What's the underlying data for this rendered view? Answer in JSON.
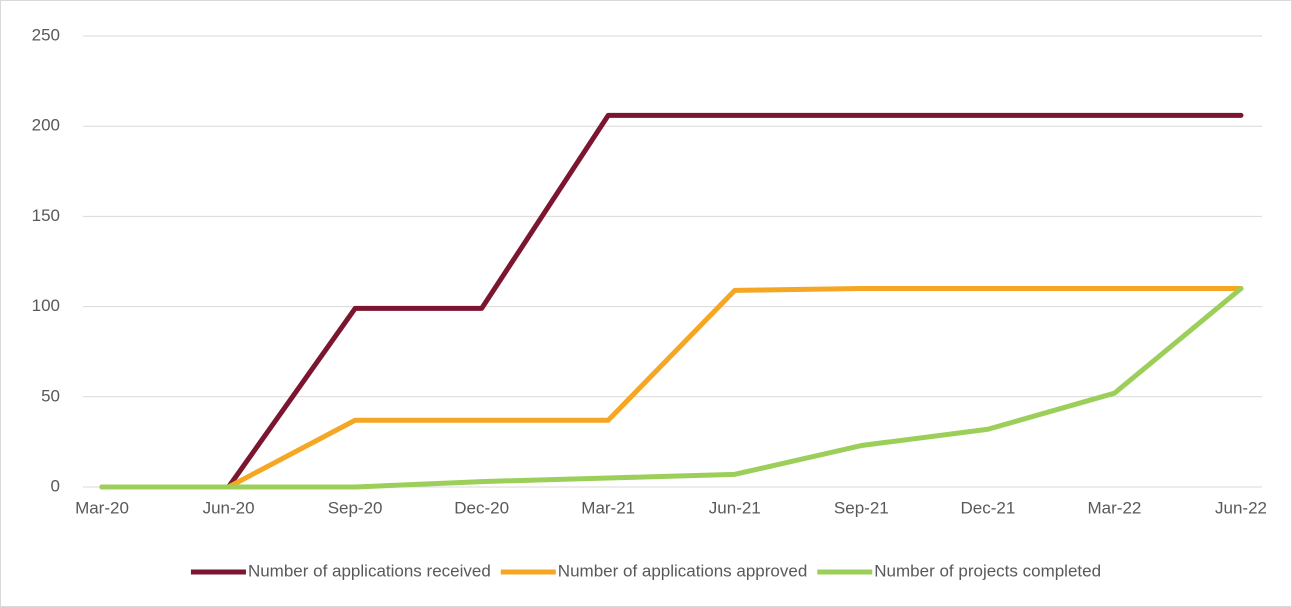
{
  "chart_data": {
    "type": "line",
    "categories": [
      "Mar-20",
      "Jun-20",
      "Sep-20",
      "Dec-20",
      "Mar-21",
      "Jun-21",
      "Sep-21",
      "Dec-21",
      "Mar-22",
      "Jun-22"
    ],
    "series": [
      {
        "name": "Number of applications received",
        "color": "#7b1530",
        "values": [
          0,
          0,
          99,
          99,
          206,
          206,
          206,
          206,
          206,
          206
        ]
      },
      {
        "name": "Number of applications approved",
        "color": "#f5a623",
        "values": [
          0,
          0,
          37,
          37,
          37,
          109,
          110,
          110,
          110,
          110
        ]
      },
      {
        "name": "Number of projects completed",
        "color": "#9bcf5a",
        "values": [
          0,
          0,
          0,
          3,
          5,
          7,
          23,
          32,
          52,
          110
        ]
      }
    ],
    "ylim": [
      0,
      250
    ],
    "yticks": [
      0,
      50,
      100,
      150,
      200,
      250
    ],
    "grid": true,
    "legend": "bottom"
  }
}
